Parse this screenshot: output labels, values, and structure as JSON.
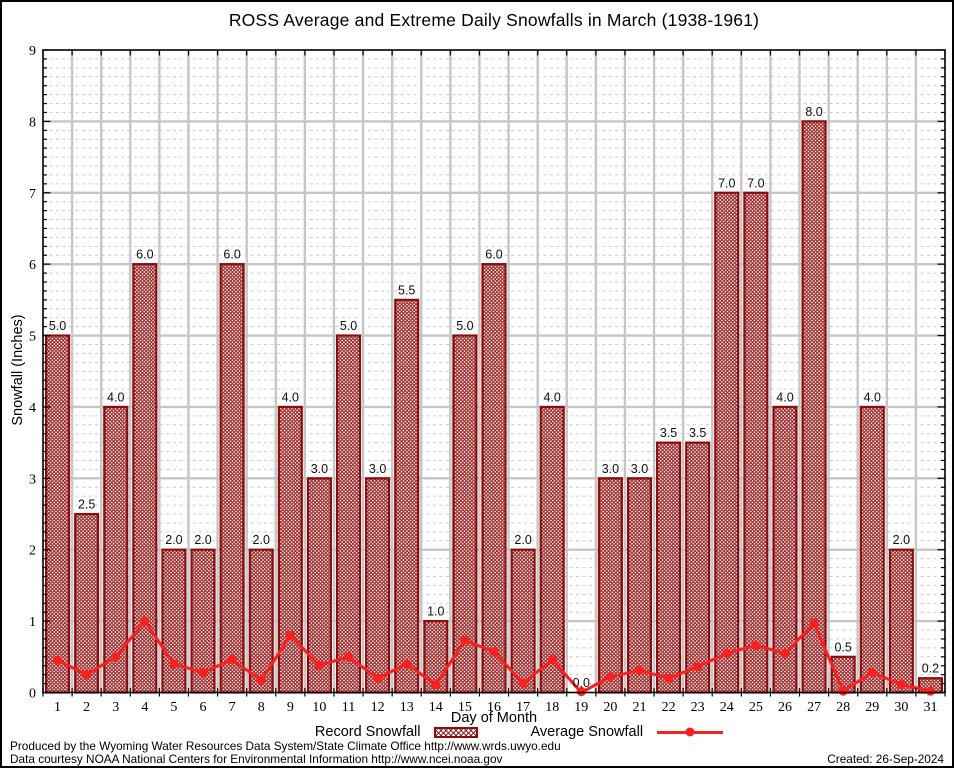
{
  "chart_data": {
    "type": "bar",
    "title": "ROSS Average and Extreme Daily Snowfalls in March (1938-1961)",
    "xlabel": "Day of Month",
    "ylabel": "Snowfall (Inches)",
    "ylim": [
      0,
      9
    ],
    "ytick_step": 1,
    "minor_step": 0.125,
    "grid": "major solid + minor dashed, vertical line at each day boundary",
    "legend_position": "bottom-center",
    "categories": [
      1,
      2,
      3,
      4,
      5,
      6,
      7,
      8,
      9,
      10,
      11,
      12,
      13,
      14,
      15,
      16,
      17,
      18,
      19,
      20,
      21,
      22,
      23,
      24,
      25,
      26,
      27,
      28,
      29,
      30,
      31
    ],
    "series": [
      {
        "name": "Record Snowfall",
        "type": "bar",
        "values": [
          5.0,
          2.5,
          4.0,
          6.0,
          2.0,
          2.0,
          6.0,
          2.0,
          4.0,
          3.0,
          5.0,
          3.0,
          5.5,
          1.0,
          5.0,
          6.0,
          2.0,
          4.0,
          0.0,
          3.0,
          3.0,
          3.5,
          3.5,
          7.0,
          7.0,
          4.0,
          8.0,
          0.5,
          4.0,
          2.0,
          0.2
        ],
        "labels": [
          "5.0",
          "2.5",
          "4.0",
          "6.0",
          "2.0",
          "2.0",
          "6.0",
          "2.0",
          "4.0",
          "3.0",
          "5.0",
          "3.0",
          "5.5",
          "1.0",
          "5.0",
          "6.0",
          "2.0",
          "4.0",
          "0.0",
          "3.0",
          "3.0",
          "3.5",
          "3.5",
          "7.0",
          "7.0",
          "4.0",
          "8.0",
          "0.5",
          "4.0",
          "2.0",
          "0.2"
        ]
      },
      {
        "name": "Average Snowfall",
        "type": "line",
        "values": [
          0.45,
          0.25,
          0.5,
          1.0,
          0.4,
          0.28,
          0.46,
          0.17,
          0.8,
          0.38,
          0.5,
          0.2,
          0.4,
          0.11,
          0.73,
          0.57,
          0.13,
          0.46,
          0.0,
          0.22,
          0.31,
          0.2,
          0.36,
          0.55,
          0.66,
          0.55,
          0.97,
          0.02,
          0.28,
          0.11,
          0.02
        ]
      }
    ],
    "colors": {
      "bar_border": "#8b0d0d",
      "bar_hatch": "#9b2424",
      "line": "#fb2020",
      "grid_major": "#c6c6c6",
      "grid_minor": "#cccccc",
      "axis": "#000000"
    }
  },
  "legend": {
    "items": [
      {
        "label": "Record Snowfall",
        "swatch": "hatched-bar"
      },
      {
        "label": "Average Snowfall",
        "swatch": "line-with-dot"
      }
    ]
  },
  "footer": {
    "line1": "Produced by the Wyoming Water Resources Data System/State Climate Office http://www.wrds.uwyo.edu",
    "line2": "Data courtesy NOAA National Centers for Environmental Information http://www.ncei.noaa.gov",
    "created": "Created: 26-Sep-2024"
  }
}
